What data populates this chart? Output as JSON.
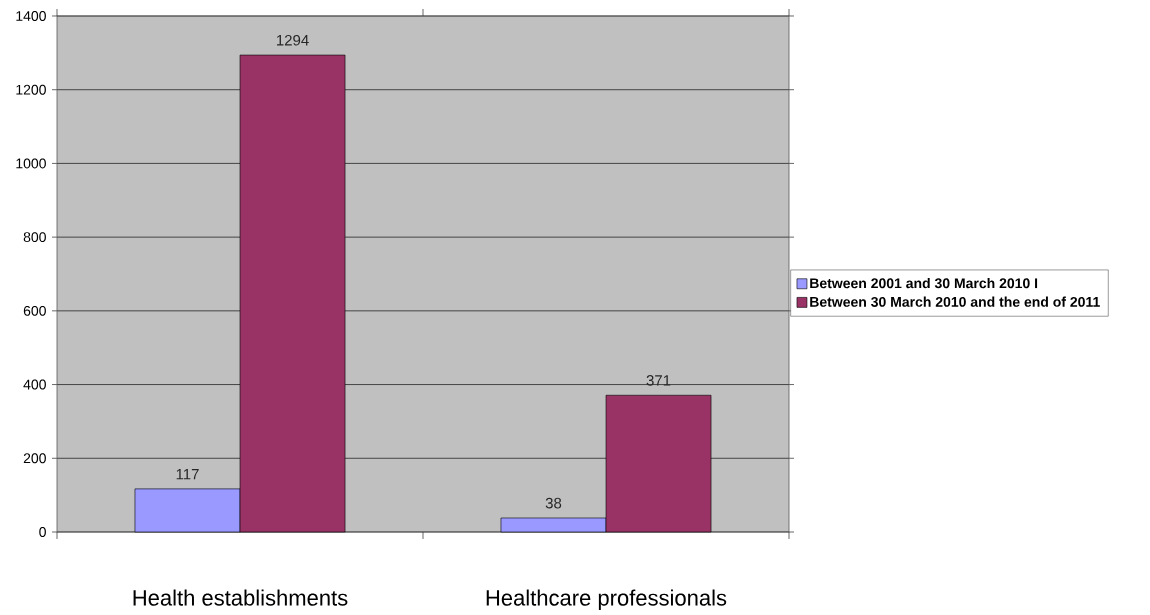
{
  "chart_data": {
    "type": "bar",
    "categories": [
      "Health establishments",
      "Healthcare professionals"
    ],
    "series": [
      {
        "name": "Between 2001 and 30 March 2010 I",
        "color": "#9999ff",
        "values": [
          117,
          38
        ]
      },
      {
        "name": "Between 30 March 2010 and the end of 2011",
        "color": "#993366",
        "values": [
          1294,
          371
        ]
      }
    ],
    "ylim": [
      0,
      1400
    ],
    "yticks": [
      0,
      200,
      400,
      600,
      800,
      1000,
      1200,
      1400
    ],
    "grid": "y",
    "legend": "right",
    "data_labels": true
  }
}
